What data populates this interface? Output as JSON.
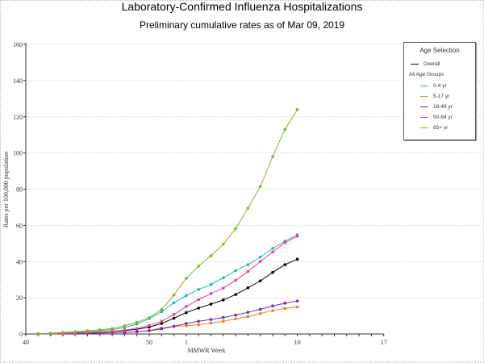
{
  "chart_data": {
    "type": "line",
    "title": "Laboratory-Confirmed Influenza Hospitalizations",
    "subtitle": "Preliminary cumulative rates as of Mar 09, 2019",
    "xlabel": "MMWR Week",
    "ylabel": "Rates per 100,000 population",
    "ylim": [
      0,
      160
    ],
    "yticks": [
      0,
      20,
      40,
      60,
      80,
      100,
      120,
      140,
      160
    ],
    "xweeks": [
      40,
      41,
      42,
      43,
      44,
      45,
      46,
      47,
      48,
      49,
      50,
      51,
      52,
      1,
      2,
      3,
      4,
      5,
      6,
      7,
      8,
      9,
      10,
      11,
      12,
      13,
      14,
      15,
      16,
      17
    ],
    "xtick_labels": [
      "40",
      "50",
      "1",
      "10",
      "17"
    ],
    "x": [
      41,
      42,
      43,
      44,
      45,
      46,
      47,
      48,
      49,
      50,
      51,
      52,
      1,
      2,
      3,
      4,
      5,
      6,
      7,
      8,
      9,
      10
    ],
    "grid": true,
    "legend_placement": "right",
    "legend": {
      "title": "Age Selection",
      "overall_label": "Overall",
      "group_heading": "All Age Groups"
    },
    "series": [
      {
        "name": "Overall",
        "color": "#000000",
        "values": [
          0.1,
          0.2,
          0.4,
          0.6,
          0.8,
          1,
          1.4,
          1.9,
          2.6,
          3.8,
          5.8,
          8.7,
          11.8,
          14.3,
          16.5,
          18.8,
          21.8,
          25.5,
          29.3,
          34,
          38.3,
          41.3
        ]
      },
      {
        "name": "0-4 yr",
        "color": "#2ab7a0",
        "values": [
          0.1,
          0.3,
          0.6,
          1,
          1.4,
          1.8,
          2.4,
          3.5,
          5.5,
          8.5,
          12.3,
          17.2,
          21.2,
          24.6,
          27.3,
          31,
          35,
          38.3,
          42.5,
          47.3,
          51.2,
          54.8
        ]
      },
      {
        "name": "5-17 yr",
        "color": "#f07f1d",
        "values": [
          0,
          0.1,
          0.2,
          0.3,
          0.4,
          0.5,
          0.7,
          0.9,
          1.3,
          1.9,
          3.3,
          4.2,
          4.5,
          5.1,
          6,
          7,
          8.3,
          9.6,
          11.3,
          12.9,
          14.1,
          14.9
        ]
      },
      {
        "name": "18-49 yr",
        "color": "#6a2fb0",
        "values": [
          0,
          0.1,
          0.2,
          0.3,
          0.4,
          0.5,
          0.7,
          0.9,
          1.2,
          1.8,
          2.8,
          4.2,
          5.8,
          7,
          8,
          9.1,
          10.4,
          12,
          13.6,
          15.5,
          17,
          18.2
        ]
      },
      {
        "name": "50-64 yr",
        "color": "#ef3d8f",
        "values": [
          0.1,
          0.2,
          0.3,
          0.5,
          0.8,
          1.1,
          1.5,
          2.2,
          3,
          4.7,
          7,
          10.8,
          15.2,
          19,
          22.3,
          25.3,
          29.6,
          34.5,
          40,
          45.3,
          50.5,
          54
        ]
      },
      {
        "name": "65+ yr",
        "color": "#7bb82d",
        "values": [
          0.2,
          0.4,
          0.8,
          1.2,
          1.8,
          2.3,
          3,
          4.5,
          6.5,
          9,
          13.5,
          21.5,
          30.8,
          37.5,
          43.2,
          49.5,
          58.2,
          69.5,
          81.5,
          98,
          113,
          124
        ]
      }
    ]
  }
}
